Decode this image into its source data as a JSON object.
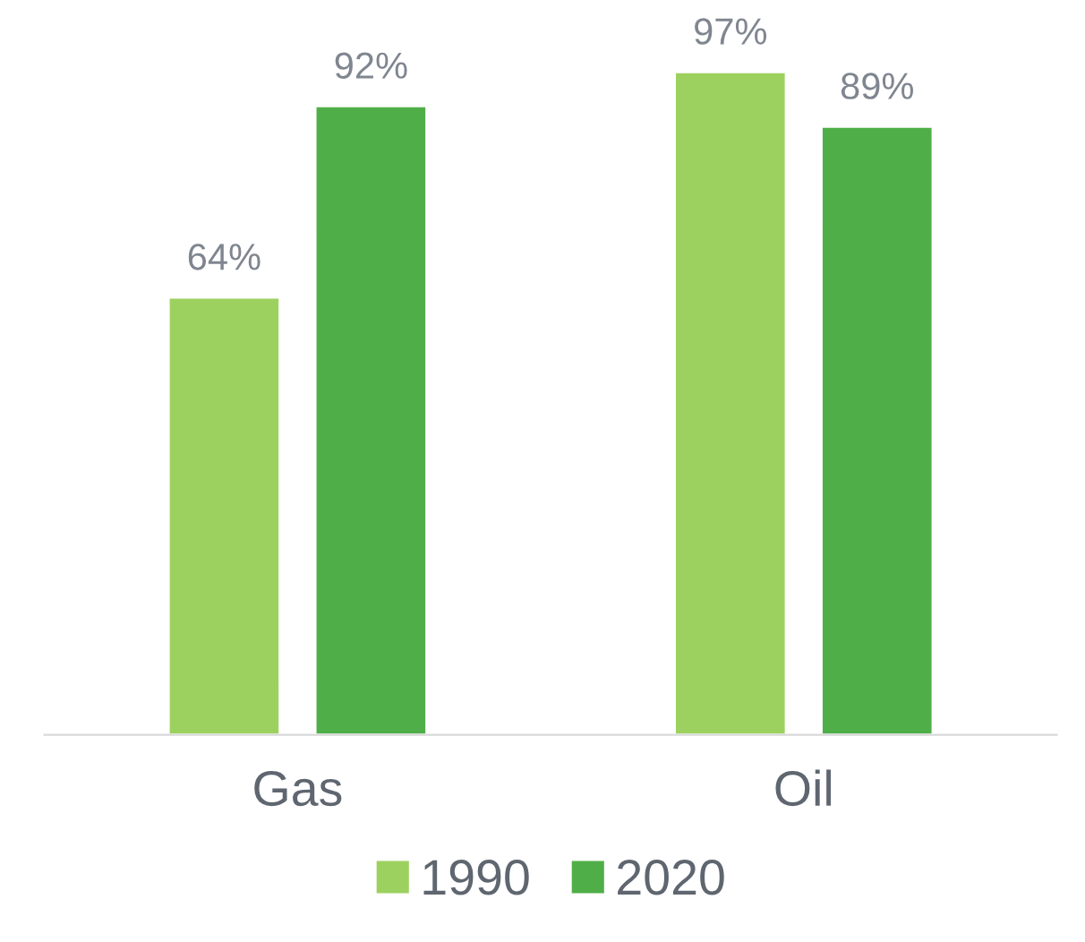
{
  "chart_data": {
    "type": "bar",
    "categories": [
      "Gas",
      "Oil"
    ],
    "series": [
      {
        "name": "1990",
        "color": "#9dd15f",
        "values": [
          64,
          97
        ],
        "value_labels": [
          "64%",
          "97%"
        ]
      },
      {
        "name": "2020",
        "color": "#50ae48",
        "values": [
          92,
          89
        ],
        "value_labels": [
          "92%",
          "89%"
        ]
      }
    ],
    "tick_labels": "x",
    "legend": "bottom",
    "grid": false
  }
}
